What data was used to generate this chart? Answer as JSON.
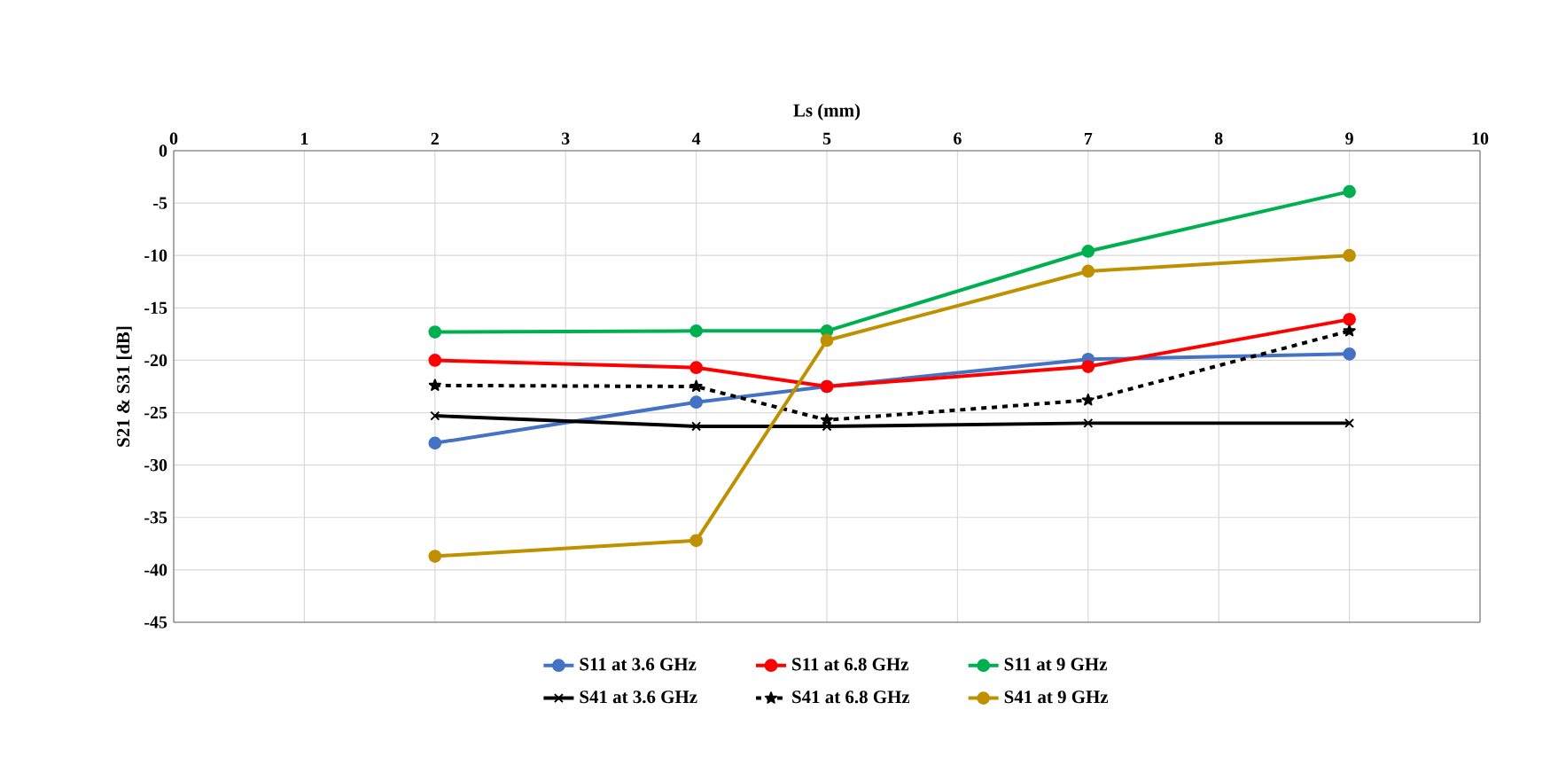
{
  "chart_data": {
    "type": "line",
    "xlabel": "Ls  (mm)",
    "ylabel": "S21 & S31 [dB]",
    "xlim": [
      0,
      10
    ],
    "xticks": [
      0,
      1,
      2,
      3,
      4,
      5,
      6,
      7,
      8,
      9,
      10
    ],
    "ylim": [
      -45,
      0
    ],
    "yticks": [
      -45,
      -40,
      -35,
      -30,
      -25,
      -20,
      -15,
      -10,
      -5,
      0
    ],
    "grid": true,
    "legend": "bottom",
    "marker": "circle",
    "line_style": "solid",
    "series": [
      {
        "name": "S11 at 3.6 GHz",
        "color": "#4472c4",
        "x": [
          2,
          4,
          5,
          7,
          9
        ],
        "values": [
          -27.9,
          -24.0,
          -22.5,
          -19.9,
          -19.4
        ]
      },
      {
        "name": "S11 at 6.8 GHz",
        "color": "#ff0000",
        "x": [
          2,
          4,
          5,
          7,
          9
        ],
        "values": [
          -20.0,
          -20.7,
          -22.5,
          -20.6,
          -16.1
        ]
      },
      {
        "name": "S11 at 9 GHz",
        "color": "#00b050",
        "x": [
          2,
          4,
          5,
          7,
          9
        ],
        "values": [
          -17.3,
          -17.2,
          -17.2,
          -9.6,
          -3.9
        ]
      },
      {
        "name": "S41 at 3.6 GHz",
        "color": "#000000",
        "marker": "cross",
        "x": [
          2,
          4,
          5,
          7,
          9
        ],
        "values": [
          -25.3,
          -26.3,
          -26.3,
          -26.0,
          -26.0
        ]
      },
      {
        "name": "S41 at 6.8 GHz",
        "color": "#000000",
        "marker": "star",
        "line_style": "dashed",
        "x": [
          2,
          4,
          5,
          7,
          9
        ],
        "values": [
          -22.4,
          -22.5,
          -25.7,
          -23.8,
          -17.2
        ]
      },
      {
        "name": "S41 at 9 GHz",
        "color": "#bf9000",
        "x": [
          2,
          4,
          5,
          7,
          9
        ],
        "values": [
          -38.7,
          -37.2,
          -18.1,
          -11.5,
          -10.0
        ]
      }
    ]
  }
}
